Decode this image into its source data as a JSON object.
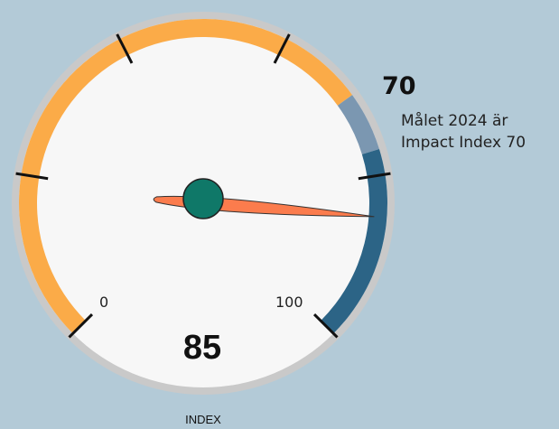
{
  "chart_data": {
    "type": "gauge",
    "value": 85,
    "value_label": "85",
    "min": 0,
    "max": 100,
    "min_label": "0",
    "max_label": "100",
    "target": 70,
    "target_label": "70",
    "target_note": "Målet 2024 är Impact Index 70",
    "gauge_label": "INDEX",
    "bands": [
      {
        "from": 0,
        "to": 70,
        "color": "#fbab48"
      },
      {
        "from": 70,
        "to": 77,
        "color": "#7b97b1"
      },
      {
        "from": 77,
        "to": 100,
        "color": "#2c6486"
      }
    ],
    "needle_color": "#fb7c4d",
    "hub_color": "#0f7868"
  }
}
